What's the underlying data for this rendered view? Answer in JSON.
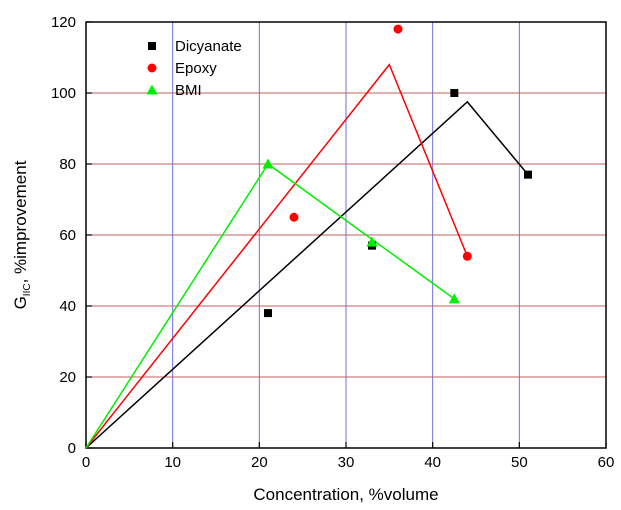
{
  "chart_data": {
    "type": "scatter",
    "xlabel": "Concentration, %volume",
    "ylabel": {
      "prefix": "G",
      "subscript": "IIC",
      "suffix": ", %improvement"
    },
    "xlim": [
      0,
      60
    ],
    "ylim": [
      0,
      120
    ],
    "xticks": [
      0,
      10,
      20,
      30,
      40,
      50,
      60
    ],
    "yticks": [
      0,
      20,
      40,
      60,
      80,
      100,
      120
    ],
    "grid": true,
    "legend_position": "top-left",
    "series": [
      {
        "name": "Dicyanate",
        "color": "#000000",
        "marker": "square",
        "points": [
          [
            21,
            38
          ],
          [
            33,
            57
          ],
          [
            42.5,
            100
          ],
          [
            51,
            77
          ]
        ],
        "fit_line": [
          [
            0,
            0
          ],
          [
            44,
            97.5
          ],
          [
            51,
            77
          ]
        ]
      },
      {
        "name": "Epoxy",
        "color": "#ff0000",
        "marker": "circle",
        "points": [
          [
            24,
            65
          ],
          [
            36,
            118
          ],
          [
            44,
            54
          ]
        ],
        "fit_line": [
          [
            0,
            0
          ],
          [
            35,
            108
          ],
          [
            44,
            54
          ]
        ]
      },
      {
        "name": "BMI",
        "color": "#00ee00",
        "marker": "triangle",
        "points": [
          [
            21,
            80
          ],
          [
            33,
            58
          ],
          [
            42.5,
            42
          ]
        ],
        "fit_line": [
          [
            0,
            0
          ],
          [
            21,
            80
          ],
          [
            42.5,
            42
          ]
        ]
      }
    ]
  }
}
